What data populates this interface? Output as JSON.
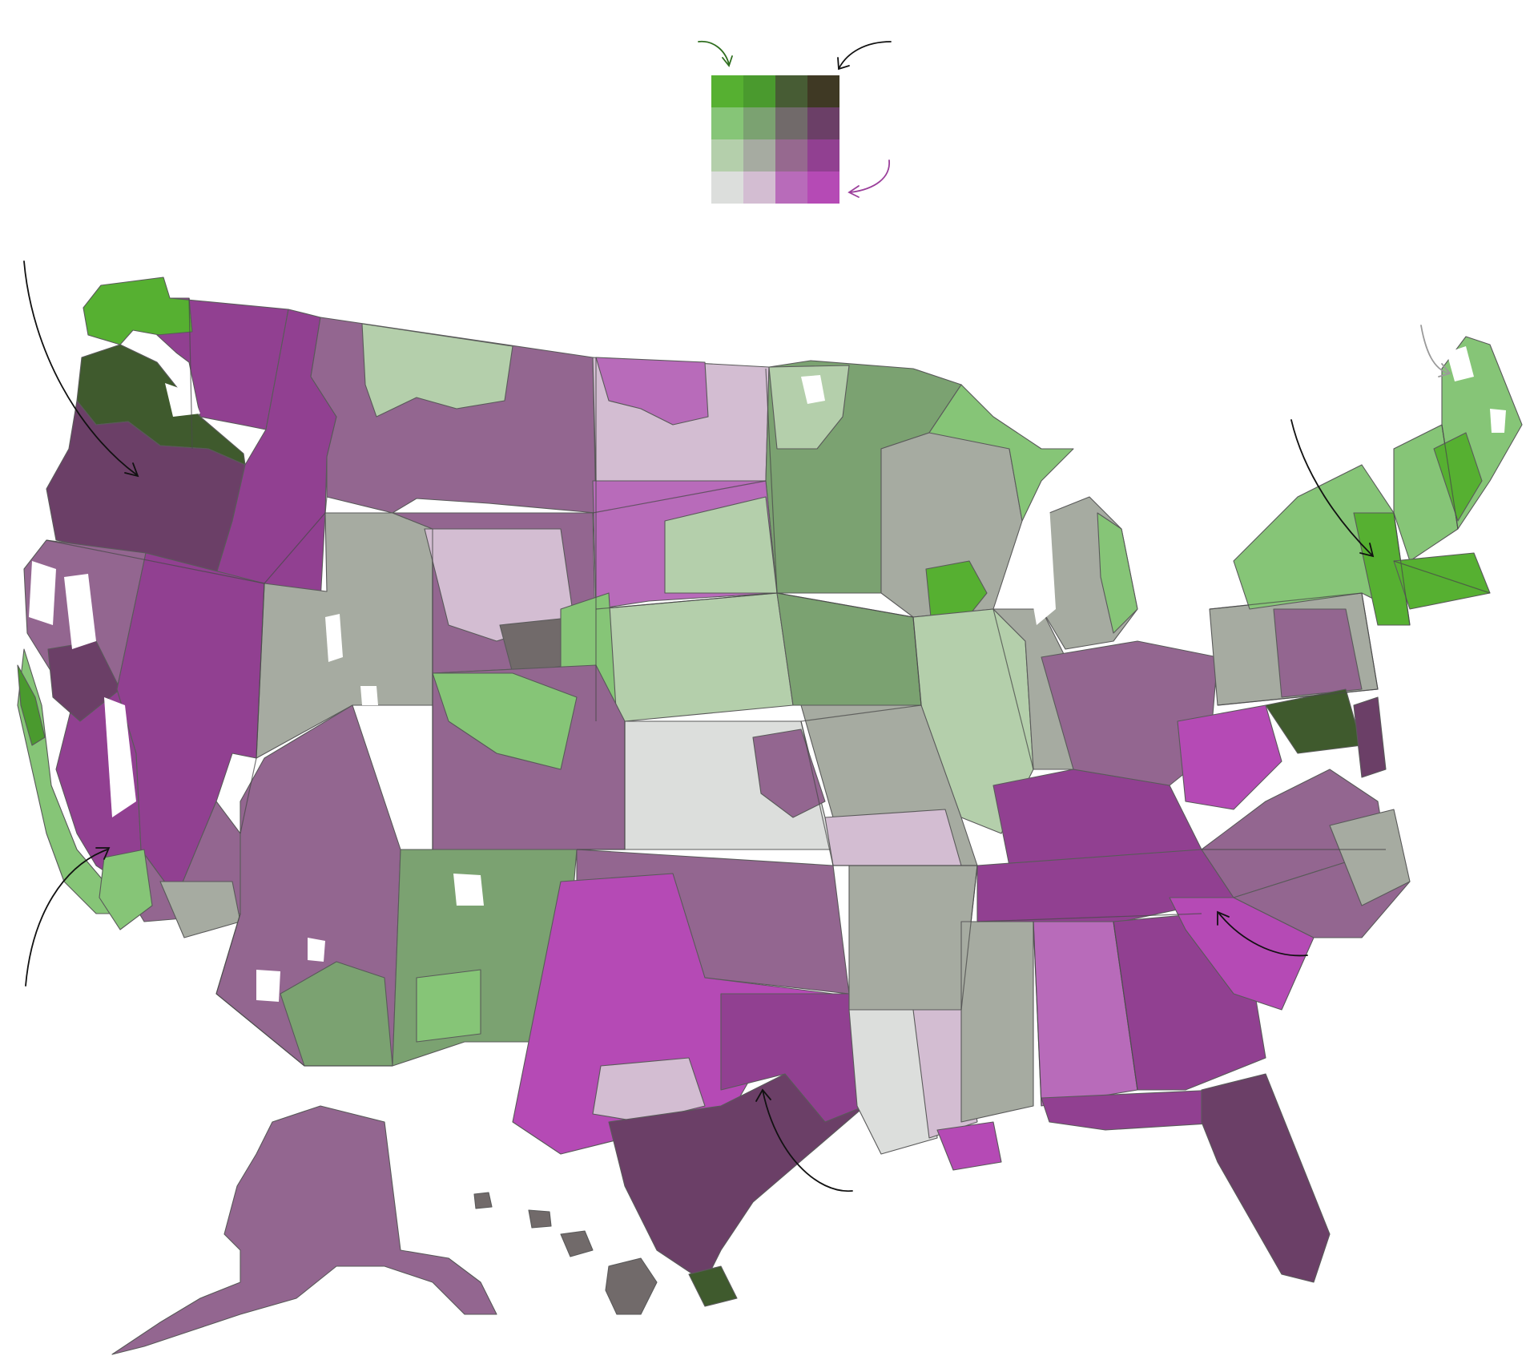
{
  "legend": {
    "rows": [
      [
        "#56b031",
        "#4a9a2e",
        "#475c34",
        "#3f3924"
      ],
      [
        "#86c577",
        "#7ba271",
        "#716a6a",
        "#6b3f67"
      ],
      [
        "#b4cfab",
        "#a6aba1",
        "#96698f",
        "#914091"
      ],
      [
        "#dcdedc",
        "#d3bdd2",
        "#b86bba",
        "#b54ab5"
      ]
    ]
  },
  "colors": {
    "hatch_green": "#3f5a2d",
    "dark_plum": "#633c62",
    "mid_purple": "#914091",
    "mauve": "#936690",
    "magenta": "#b54ab5",
    "light_mauve": "#b86bba",
    "pale_pink": "#d3bdd2",
    "pale_grey": "#dcdedc",
    "grey": "#a6aba1",
    "sage": "#b4cfab",
    "mid_green": "#86c577",
    "dull_green": "#7ba271",
    "bright_green": "#56b031",
    "dark_grey": "#716a6a",
    "arrow_black": "#111111",
    "arrow_green": "#2f6e1f",
    "arrow_purple": "#9b3f9b",
    "arrow_grey": "#9a9a9a"
  },
  "icons": [
    "arrow-icon"
  ]
}
